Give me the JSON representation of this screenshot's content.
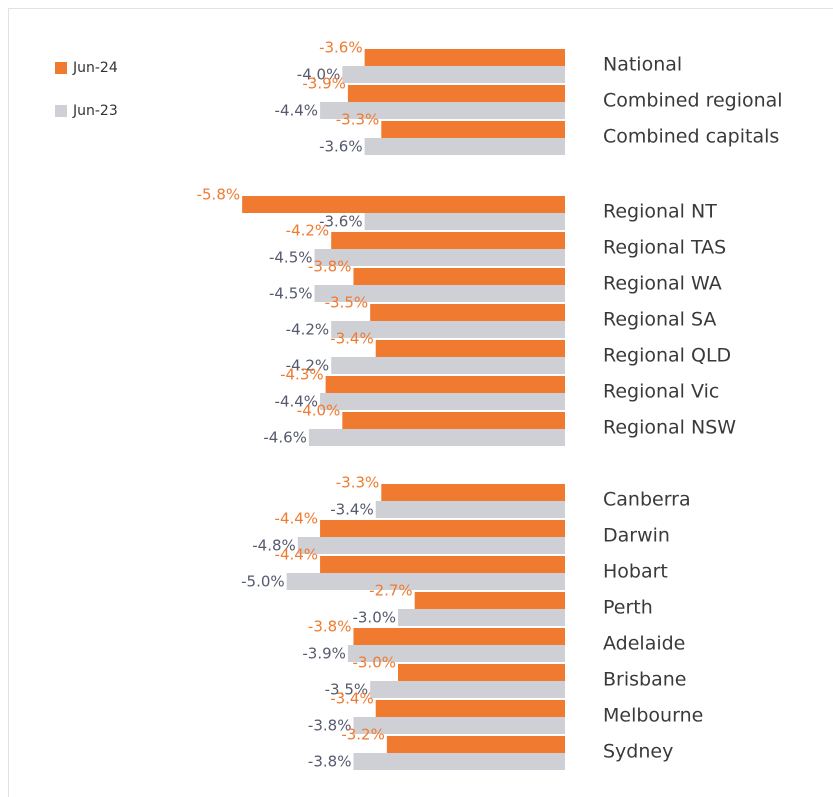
{
  "chart_data": {
    "type": "bar",
    "orientation": "horizontal",
    "categories": [
      "National",
      "Combined regional",
      "Combined capitals",
      "Regional NT",
      "Regional TAS",
      "Regional WA",
      "Regional SA",
      "Regional QLD",
      "Regional Vic",
      "Regional NSW",
      "Canberra",
      "Darwin",
      "Hobart",
      "Perth",
      "Adelaide",
      "Brisbane",
      "Melbourne",
      "Sydney"
    ],
    "series": [
      {
        "name": "Jun-24",
        "color": "#f07a30",
        "values": [
          -3.6,
          -3.9,
          -3.3,
          -5.8,
          -4.2,
          -3.8,
          -3.5,
          -3.4,
          -4.3,
          -4.0,
          -3.3,
          -4.4,
          -4.4,
          -2.7,
          -3.8,
          -3.0,
          -3.4,
          -3.2
        ],
        "value_labels": [
          "-3.6%",
          "-3.9%",
          "-3.3%",
          "-5.8%",
          "-4.2%",
          "-3.8%",
          "-3.5%",
          "-3.4%",
          "-4.3%",
          "-4.0%",
          "-3.3%",
          "-4.4%",
          "-4.4%",
          "-2.7%",
          "-3.8%",
          "-3.0%",
          "-3.4%",
          "-3.2%"
        ]
      },
      {
        "name": "Jun-23",
        "color": "#cfd0d6",
        "values": [
          -4.0,
          -4.4,
          -3.6,
          -3.6,
          -4.5,
          -4.5,
          -4.2,
          -4.2,
          -4.4,
          -4.6,
          -3.4,
          -4.8,
          -5.0,
          -3.0,
          -3.9,
          -3.5,
          -3.8,
          -3.8
        ],
        "value_labels": [
          "-4.0%",
          "-4.4%",
          "-3.6%",
          "-3.6%",
          "-4.5%",
          "-4.5%",
          "-4.2%",
          "-4.2%",
          "-4.4%",
          "-4.6%",
          "-3.4%",
          "-4.8%",
          "-5.0%",
          "-3.0%",
          "-3.9%",
          "-3.5%",
          "-3.8%",
          "-3.8%"
        ]
      }
    ],
    "xlim": [
      -6,
      0
    ]
  }
}
